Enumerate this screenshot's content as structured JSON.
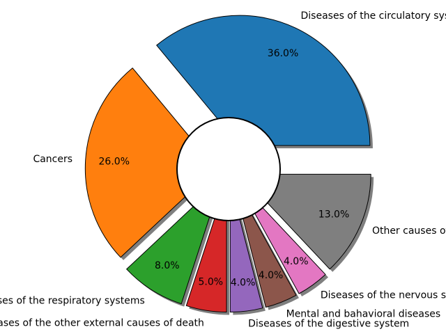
{
  "chart_data": {
    "type": "pie",
    "title": "",
    "donut": true,
    "shadow": true,
    "slices": [
      {
        "label": "Diseases of the circulatory systems",
        "value": 36.0,
        "pct_text": "36.0%",
        "color": "#1f77b4",
        "explode": 0.2
      },
      {
        "label": "Cancers",
        "value": 26.0,
        "pct_text": "26.0%",
        "color": "#ff7f0e",
        "explode": 0.1
      },
      {
        "label": "Diseases of the respiratory systems",
        "value": 8.0,
        "pct_text": "8.0%",
        "color": "#2ca02c",
        "explode": 0.1
      },
      {
        "label": "Diseases of the other external causes of death",
        "value": 5.0,
        "pct_text": "5.0%",
        "color": "#d62728",
        "explode": 0.1
      },
      {
        "label": "Diseases of the digestive system",
        "value": 4.0,
        "pct_text": "4.0%",
        "color": "#9467bd",
        "explode": 0.1
      },
      {
        "label": "Mental and bahavioral diseases",
        "value": 4.0,
        "pct_text": "4.0%",
        "color": "#8c564b",
        "explode": 0.1
      },
      {
        "label": "Diseases of the nervous system",
        "value": 4.0,
        "pct_text": "4.0%",
        "color": "#e377c2",
        "explode": 0.1
      },
      {
        "label": "Other causes of death",
        "value": 13.0,
        "pct_text": "13.0%",
        "color": "#7f7f7f",
        "explode": 0.1
      }
    ]
  }
}
